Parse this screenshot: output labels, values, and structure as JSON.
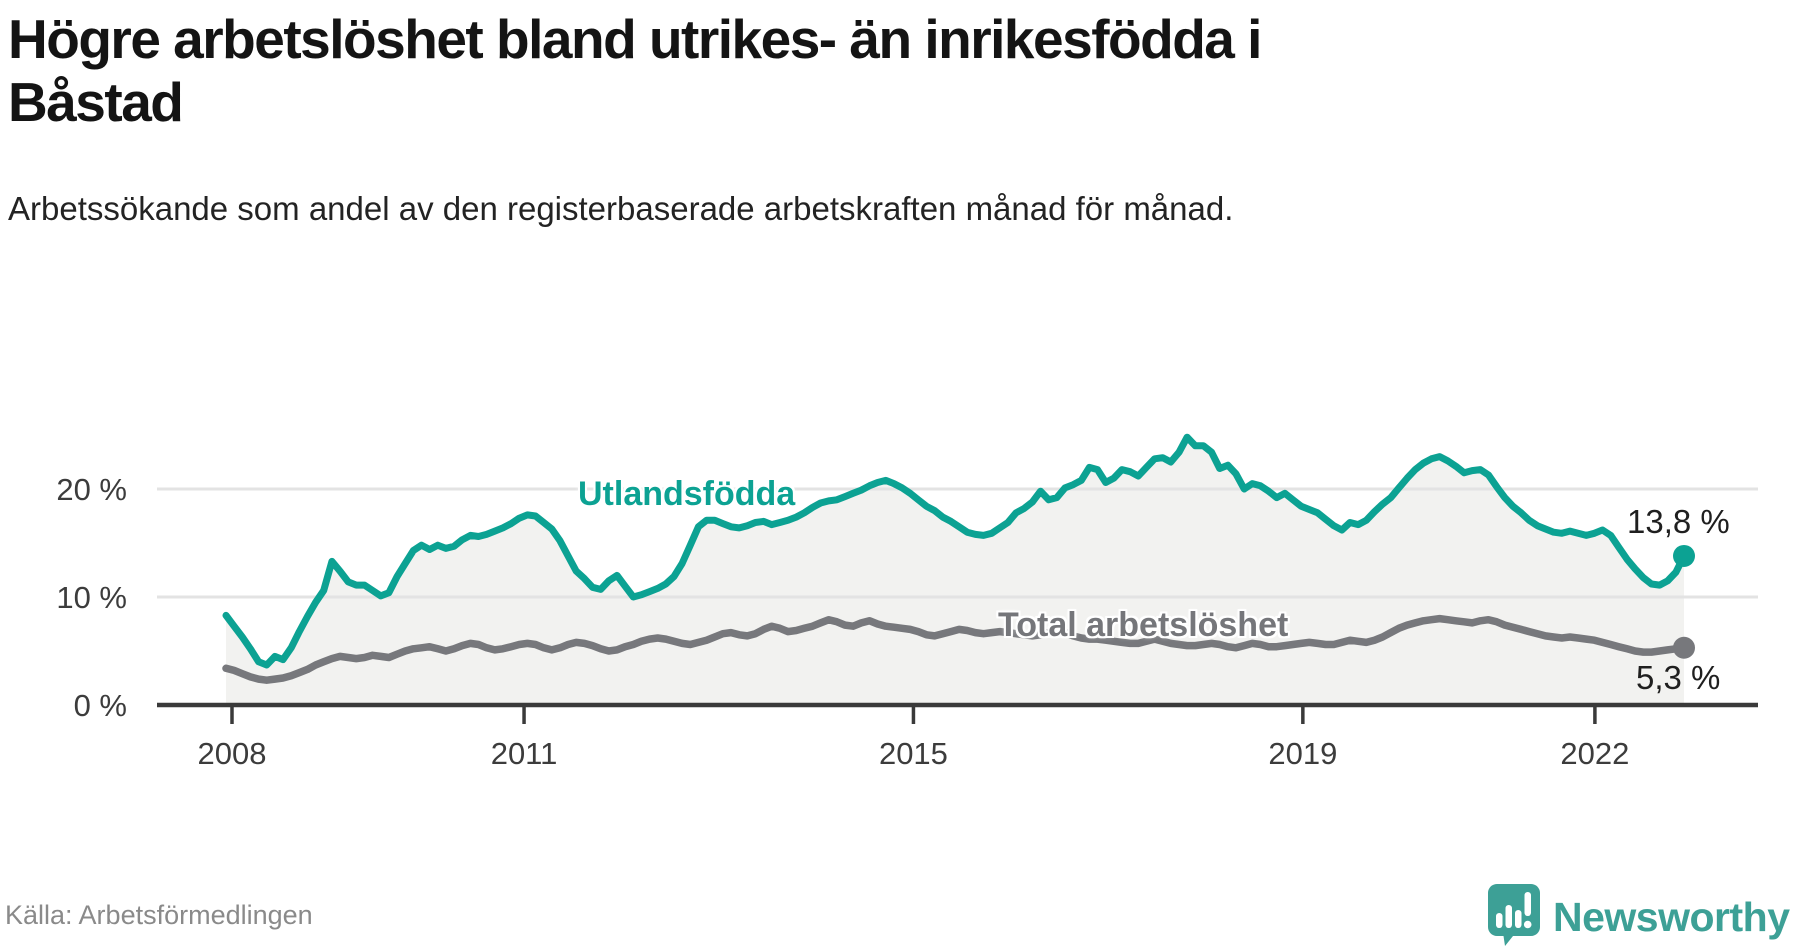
{
  "header": {
    "title": "Högre arbetslöshet bland utrikes- än inrikesfödda i Båstad",
    "subtitle": "Arbetssökande som andel av den registerbaserade arbetskraften månad för månad."
  },
  "source": {
    "label": "Källa: Arbetsförmedlingen"
  },
  "branding": {
    "name": "Newsworthy",
    "icon": "newsworthy-speech-bubble-bars-icon",
    "color": "#3da096"
  },
  "colors": {
    "accent_teal": "#0ca293",
    "line_gray": "#77787c",
    "area_fill": "#f2f2f0",
    "gridline": "#e3e3e3",
    "axis": "#3a3a3a",
    "tick_text": "#3c3c3c"
  },
  "chart_data": {
    "type": "line",
    "title": "Högre arbetslöshet bland utrikes- än inrikesfödda i Båstad",
    "subtitle": "Arbetssökande som andel av den registerbaserade arbetskraften månad för månad.",
    "x_unit": "month",
    "x_start": "2008-01",
    "x_end": "2022-12",
    "xlim_years": [
      2008,
      2023
    ],
    "ylim": [
      0,
      27
    ],
    "grid": "horizontal",
    "x_ticks": [
      2008,
      2011,
      2015,
      2019,
      2022
    ],
    "x_tick_labels": [
      "2008",
      "2011",
      "2015",
      "2019",
      "2022"
    ],
    "y_ticks": [
      0,
      10,
      20
    ],
    "y_tick_labels": [
      "0 %",
      "10 %",
      "20 %"
    ],
    "area_fill": "#f2f2f0",
    "series": [
      {
        "name": "Utlandsfödda",
        "color": "#0ca293",
        "end_label": "13,8 %",
        "end_value": 13.8,
        "values": [
          8.3,
          7.3,
          6.3,
          5.2,
          4.0,
          3.7,
          4.5,
          4.2,
          5.3,
          6.8,
          8.2,
          9.5,
          10.6,
          13.3,
          12.4,
          11.4,
          11.1,
          11.1,
          10.6,
          10.1,
          10.4,
          11.9,
          13.1,
          14.3,
          14.8,
          14.4,
          14.8,
          14.5,
          14.7,
          15.3,
          15.7,
          15.6,
          15.8,
          16.1,
          16.4,
          16.8,
          17.3,
          17.6,
          17.5,
          16.9,
          16.3,
          15.2,
          13.8,
          12.4,
          11.7,
          10.9,
          10.7,
          11.5,
          12.0,
          11.0,
          10.0,
          10.2,
          10.5,
          10.8,
          11.2,
          11.9,
          13.1,
          14.8,
          16.5,
          17.1,
          17.1,
          16.8,
          16.5,
          16.4,
          16.6,
          16.9,
          17.0,
          16.7,
          16.9,
          17.1,
          17.4,
          17.8,
          18.3,
          18.7,
          18.9,
          19.0,
          19.3,
          19.6,
          19.9,
          20.3,
          20.6,
          20.8,
          20.5,
          20.1,
          19.6,
          19.0,
          18.4,
          18.0,
          17.4,
          17.0,
          16.5,
          16.0,
          15.8,
          15.7,
          15.9,
          16.4,
          16.9,
          17.8,
          18.2,
          18.8,
          19.8,
          19.0,
          19.2,
          20.1,
          20.4,
          20.8,
          22.0,
          21.8,
          20.6,
          21.0,
          21.8,
          21.6,
          21.2,
          22.0,
          22.8,
          22.9,
          22.5,
          23.4,
          24.8,
          24.0,
          24.0,
          23.4,
          21.9,
          22.2,
          21.4,
          20.0,
          20.5,
          20.3,
          19.8,
          19.2,
          19.6,
          19.0,
          18.4,
          18.1,
          17.8,
          17.2,
          16.6,
          16.2,
          16.9,
          16.7,
          17.1,
          17.9,
          18.6,
          19.2,
          20.1,
          21.0,
          21.8,
          22.4,
          22.8,
          23.0,
          22.6,
          22.1,
          21.5,
          21.7,
          21.8,
          21.3,
          20.2,
          19.2,
          18.4,
          17.8,
          17.1,
          16.6,
          16.3,
          16.0,
          15.9,
          16.1,
          15.9,
          15.7,
          15.9,
          16.2,
          15.7,
          14.6,
          13.5,
          12.6,
          11.8,
          11.2,
          11.1,
          11.5,
          12.3,
          13.8
        ]
      },
      {
        "name": "Total arbetslöshet",
        "color": "#77787c",
        "end_label": "5,3 %",
        "end_value": 5.3,
        "values": [
          3.4,
          3.2,
          2.9,
          2.6,
          2.4,
          2.3,
          2.4,
          2.5,
          2.7,
          3.0,
          3.3,
          3.7,
          4.0,
          4.3,
          4.5,
          4.4,
          4.3,
          4.4,
          4.6,
          4.5,
          4.4,
          4.7,
          5.0,
          5.2,
          5.3,
          5.4,
          5.2,
          5.0,
          5.2,
          5.5,
          5.7,
          5.6,
          5.3,
          5.1,
          5.2,
          5.4,
          5.6,
          5.7,
          5.6,
          5.3,
          5.1,
          5.3,
          5.6,
          5.8,
          5.7,
          5.5,
          5.2,
          5.0,
          5.1,
          5.4,
          5.6,
          5.9,
          6.1,
          6.2,
          6.1,
          5.9,
          5.7,
          5.6,
          5.8,
          6.0,
          6.3,
          6.6,
          6.7,
          6.5,
          6.4,
          6.6,
          7.0,
          7.3,
          7.1,
          6.8,
          6.9,
          7.1,
          7.3,
          7.6,
          7.9,
          7.7,
          7.4,
          7.3,
          7.6,
          7.8,
          7.5,
          7.3,
          7.2,
          7.1,
          7.0,
          6.8,
          6.5,
          6.4,
          6.6,
          6.8,
          7.0,
          6.9,
          6.7,
          6.6,
          6.7,
          6.8,
          6.7,
          6.6,
          6.5,
          6.4,
          6.5,
          6.7,
          6.9,
          6.7,
          6.4,
          6.2,
          6.1,
          6.1,
          6.0,
          5.9,
          5.8,
          5.7,
          5.7,
          5.9,
          6.1,
          5.9,
          5.7,
          5.6,
          5.5,
          5.5,
          5.6,
          5.7,
          5.6,
          5.4,
          5.3,
          5.5,
          5.7,
          5.6,
          5.4,
          5.4,
          5.5,
          5.6,
          5.7,
          5.8,
          5.7,
          5.6,
          5.6,
          5.8,
          6.0,
          5.9,
          5.8,
          6.0,
          6.3,
          6.7,
          7.1,
          7.4,
          7.6,
          7.8,
          7.9,
          8.0,
          7.9,
          7.8,
          7.7,
          7.6,
          7.8,
          7.9,
          7.7,
          7.4,
          7.2,
          7.0,
          6.8,
          6.6,
          6.4,
          6.3,
          6.2,
          6.3,
          6.2,
          6.1,
          6.0,
          5.8,
          5.6,
          5.4,
          5.2,
          5.0,
          4.9,
          4.9,
          5.0,
          5.1,
          5.2,
          5.3
        ]
      }
    ]
  }
}
